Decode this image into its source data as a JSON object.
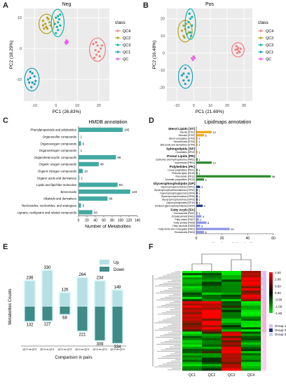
{
  "panels": [
    "A",
    "B",
    "C",
    "D",
    "E",
    "F"
  ],
  "colors": {
    "QC4": "#f08080",
    "QC2": "#b5a31e",
    "QC3": "#12b5a8",
    "QC1": "#1a9fc0",
    "QC": "#ee5ce8",
    "orange": "#f0a81c",
    "green": "#2e8b2e",
    "navy": "#203a86",
    "lavender": "#8e96e8",
    "bar": "#43a9a2",
    "up": "#b6e0e4",
    "down": "#3f8b88",
    "high": "#ff0000",
    "low": "#00c800"
  },
  "chart_data": [
    {
      "type": "scatter",
      "panel": "A",
      "title": "Neg",
      "xlabel": "PC1 (26.83%)",
      "ylabel": "PC2 (18.29%)",
      "xticks": [
        "-10",
        "0",
        "10",
        "20"
      ],
      "yticks": [
        "10",
        "0",
        "-10"
      ],
      "xlim": [
        -15,
        25
      ],
      "ylim": [
        -17,
        13
      ],
      "legend_title": "class",
      "legend_position": "right",
      "series": [
        {
          "name": "QC4",
          "points": [
            [
              18.5,
              -0.5
            ],
            [
              19.5,
              1
            ],
            [
              20,
              -1
            ],
            [
              21,
              0
            ],
            [
              18,
              -3
            ],
            [
              19,
              -2
            ],
            [
              17.5,
              1.5
            ],
            [
              20.5,
              -2.5
            ],
            [
              21.5,
              1
            ],
            [
              18.8,
              2
            ]
          ]
        },
        {
          "name": "QC2",
          "points": [
            [
              -5,
              8
            ],
            [
              -4,
              10
            ],
            [
              -3,
              8.5
            ],
            [
              -6,
              9
            ],
            [
              -4.5,
              7
            ],
            [
              -3.5,
              9.5
            ],
            [
              -5.5,
              6.5
            ],
            [
              -4,
              6.5
            ],
            [
              -2.5,
              7.5
            ],
            [
              -6,
              7.5
            ]
          ]
        },
        {
          "name": "QC3",
          "points": [
            [
              0,
              10
            ],
            [
              1,
              10.5
            ],
            [
              1,
              8.5
            ],
            [
              0.5,
              7
            ],
            [
              0,
              5
            ],
            [
              1.5,
              9.5
            ],
            [
              2,
              11
            ],
            [
              -0.5,
              8
            ],
            [
              1,
              6
            ],
            [
              2,
              7.5
            ]
          ]
        },
        {
          "name": "QC1",
          "points": [
            [
              -11,
              -8
            ],
            [
              -12,
              -9.5
            ],
            [
              -11,
              -11
            ],
            [
              -10,
              -9
            ],
            [
              -13,
              -10
            ],
            [
              -9.5,
              -10.5
            ],
            [
              -11.5,
              -12.5
            ],
            [
              -12,
              -7.5
            ],
            [
              -10,
              -11.5
            ],
            [
              -12.5,
              -11
            ]
          ]
        },
        {
          "name": "QC",
          "points": [
            [
              4.5,
              2
            ],
            [
              5,
              2.6
            ],
            [
              5.5,
              2.2
            ],
            [
              4.8,
              1.6
            ],
            [
              5.2,
              1.8
            ]
          ]
        }
      ]
    },
    {
      "type": "scatter",
      "panel": "B",
      "title": "Pos",
      "xlabel": "PC1 (21.69%)",
      "ylabel": "PC2 (16.48%)",
      "xticks": [
        "-10",
        "0",
        "10",
        "20",
        "30"
      ],
      "yticks": [
        "20",
        "10",
        "0",
        "-10",
        "-20"
      ],
      "xlim": [
        -16,
        35
      ],
      "ylim": [
        -28,
        26
      ],
      "legend_title": "class",
      "legend_position": "right",
      "series": [
        {
          "name": "QC4",
          "points": [
            [
              25,
              2
            ],
            [
              26.5,
              3
            ],
            [
              27,
              1
            ],
            [
              28,
              2.5
            ],
            [
              26,
              0
            ],
            [
              25.5,
              4
            ],
            [
              27.5,
              0.5
            ],
            [
              26,
              2
            ]
          ]
        },
        {
          "name": "QC2",
          "points": [
            [
              -6,
              10
            ],
            [
              -5,
              14
            ],
            [
              -3,
              12
            ],
            [
              -6,
              16
            ],
            [
              -4,
              11
            ],
            [
              -7,
              13
            ],
            [
              -4.5,
              17
            ],
            [
              -5.5,
              9
            ]
          ]
        },
        {
          "name": "QC3",
          "points": [
            [
              -3,
              18
            ],
            [
              -2,
              20
            ],
            [
              -1,
              16
            ],
            [
              -2,
              12
            ],
            [
              -3,
              15
            ],
            [
              -1,
              21
            ],
            [
              -2.5,
              23
            ],
            [
              -1.5,
              10
            ]
          ]
        },
        {
          "name": "QC1",
          "points": [
            [
              -6,
              -12
            ],
            [
              -4,
              -14
            ],
            [
              -6,
              -16
            ],
            [
              -5,
              -9
            ],
            [
              -3,
              -12
            ],
            [
              -7,
              -13
            ],
            [
              -5,
              -18
            ],
            [
              -3,
              -16
            ]
          ]
        },
        {
          "name": "QC",
          "points": [
            [
              -1,
              -3
            ],
            [
              0,
              -2
            ],
            [
              -0.5,
              -4
            ],
            [
              0.5,
              -3
            ]
          ]
        }
      ]
    },
    {
      "type": "bar",
      "panel": "C",
      "orientation": "horizontal",
      "title": "HMDB annotation",
      "xlabel": "Number of Metabolites",
      "categories": [
        "Phenylpropanoids and polyketides",
        "Organosulfur compounds",
        "Organooxygen compounds",
        "Organonitrogen compounds",
        "Organoheterocyclic compounds",
        "Organic oxygen compounds",
        "Organic nitrogen compounds",
        "Organic acids and derivatives",
        "Lipids and lipid-like molecules",
        "Benzenoids",
        "Alkaloids and derivatives",
        "Nucleosides, nucleotides, and analogues",
        "Lignans, neolignans and related compounds"
      ],
      "values": [
        105,
        1,
        6,
        1,
        89,
        48,
        10,
        2,
        93,
        123,
        69,
        6,
        33
      ],
      "value_labels": [
        "105",
        "1",
        "6",
        "1",
        "89",
        "48",
        "10",
        "2",
        "93",
        "123",
        "69",
        "6",
        "33"
      ],
      "xticks": [
        "0",
        "20",
        "40",
        "60",
        "80",
        "100",
        "120",
        "140"
      ],
      "xlim": [
        0,
        140
      ]
    },
    {
      "type": "bar",
      "panel": "D",
      "orientation": "horizontal",
      "title": "Lipidmaps annotation",
      "xlabel": "Number of Metabolites",
      "xticks": [
        "0",
        "20",
        "40",
        "60"
      ],
      "xlim": [
        0,
        60
      ],
      "groups": [
        {
          "name": "Sterol Lipids [ST]",
          "color": "orange",
          "categories": [
            "Sterols [ST01]",
            "Steroids [ST02]",
            "Sterol conjugates [ST03]",
            "Secosteroids [ST04]",
            "Bile acids and derivatives [ST05]"
          ],
          "values": [
            12,
            6,
            1,
            1,
            1
          ]
        },
        {
          "name": "Sphingolipids [SP]",
          "color": "orange",
          "categories": [
            "Ceramides [SP02]"
          ],
          "values": [
            1
          ]
        },
        {
          "name": "Prenol Lipids [PR]",
          "color": "green",
          "categories": [
            "Quinones and hydroquinones [PR02]",
            "Isoprenoids [PR01]"
          ],
          "values": [
            1,
            12
          ]
        },
        {
          "name": "Polyketides [PK]",
          "color": "green",
          "categories": [
            "Linear polyketides [PK01]",
            "Phenolic lipids [PK15]",
            "Flavonoids [PK12]",
            "Aromatic polyketides [PK13]"
          ],
          "values": [
            1,
            1,
            58,
            6
          ]
        },
        {
          "name": "Glycerophospholipids [GP]",
          "color": "navy",
          "categories": [
            "Glycerophosphocholines [GP01]",
            "Glycerophosphoethanolamines [GP02]",
            "Glycerophosphoglycerols [GP04]",
            "Glycerophosphoinositols [GP06]",
            "Glycerophosphoserines [GP03]",
            "Glycerophosphates [GP10]",
            "Oxidized glycerophospholipids [GP20]"
          ],
          "values": [
            3,
            1,
            1,
            1,
            1,
            1,
            5
          ]
        },
        {
          "name": "Fatty Acyls [FA]",
          "color": "lavender",
          "categories": [
            "Docosanoids [FA04]",
            "Octadecanoids [FA02]",
            "Fatty esters [FA07]",
            "Fatty amides [FA08]",
            "Fatty alcohols [FA05]",
            "Fatty Acids and Conjugates [FA01]",
            "Eicosanoids [FA03]"
          ],
          "values": [
            1,
            4,
            2,
            8,
            3,
            26,
            6
          ]
        }
      ]
    },
    {
      "type": "bar",
      "panel": "E",
      "ylabel": "Metabolites Counts",
      "xlabel": "Comparison in pairs",
      "categories": [
        "QC2 vs QC1",
        "QC3 vs QC1",
        "QC3 vs QC2",
        "QC4 vs QC1",
        "QC4 vs QC2",
        "QC4 vs QC3"
      ],
      "legend_position": "top-right",
      "series": [
        {
          "name": "Up",
          "values": [
            236,
            330,
            126,
            264,
            234,
            149
          ]
        },
        {
          "name": "Down",
          "values": [
            132,
            127,
            68,
            221,
            309,
            334
          ]
        }
      ]
    },
    {
      "type": "heatmap",
      "panel": "F",
      "columns": [
        "QC1",
        "QC2",
        "QC3",
        "QC4"
      ],
      "color_scale_ticks": [
        "1.50",
        "1.00",
        "0.50",
        "0.00",
        "-0.50",
        "-1.00",
        "-1.50"
      ],
      "legend": [
        "Group 1",
        "Group 2",
        "Group 3"
      ]
    }
  ]
}
